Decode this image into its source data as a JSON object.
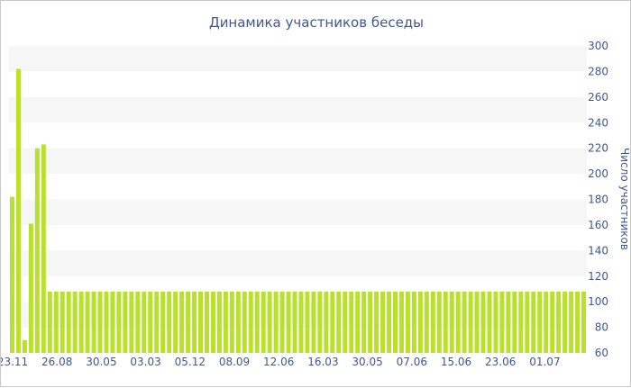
{
  "chart_data": {
    "type": "bar",
    "title": "Динамика участников беседы",
    "xlabel": "",
    "ylabel": "Число участников",
    "ylim": [
      60,
      300
    ],
    "yticks": [
      60,
      80,
      100,
      120,
      140,
      160,
      180,
      200,
      220,
      240,
      260,
      280,
      300
    ],
    "x_tick_labels": [
      "23.11",
      "26.08",
      "30.05",
      "03.03",
      "05.12",
      "08.09",
      "12.06",
      "16.03",
      "30.05",
      "07.06",
      "15.06",
      "23.06",
      "01.07"
    ],
    "y_axis_position": "right",
    "grid": "horizontal alternating bands",
    "bar_color": "#b9e02b",
    "band_color": "#f6f6f6",
    "text_color": "#3e5799",
    "values": [
      182,
      282,
      70,
      161,
      220,
      223,
      108,
      108,
      108,
      108,
      108,
      108,
      108,
      108,
      108,
      108,
      108,
      108,
      108,
      108,
      108,
      108,
      108,
      108,
      108,
      108,
      108,
      108,
      108,
      108,
      108,
      108,
      108,
      108,
      108,
      108,
      108,
      108,
      108,
      108,
      108,
      108,
      108,
      108,
      108,
      108,
      108,
      108,
      108,
      108,
      108,
      108,
      108,
      108,
      108,
      108,
      108,
      108,
      108,
      108,
      108,
      108,
      108,
      108,
      108,
      108,
      108,
      108,
      108,
      108,
      108,
      108,
      108,
      108,
      108,
      108,
      108,
      108,
      108,
      108,
      108,
      108,
      108,
      108,
      108,
      108,
      108,
      108,
      108,
      108,
      108,
      108
    ]
  }
}
